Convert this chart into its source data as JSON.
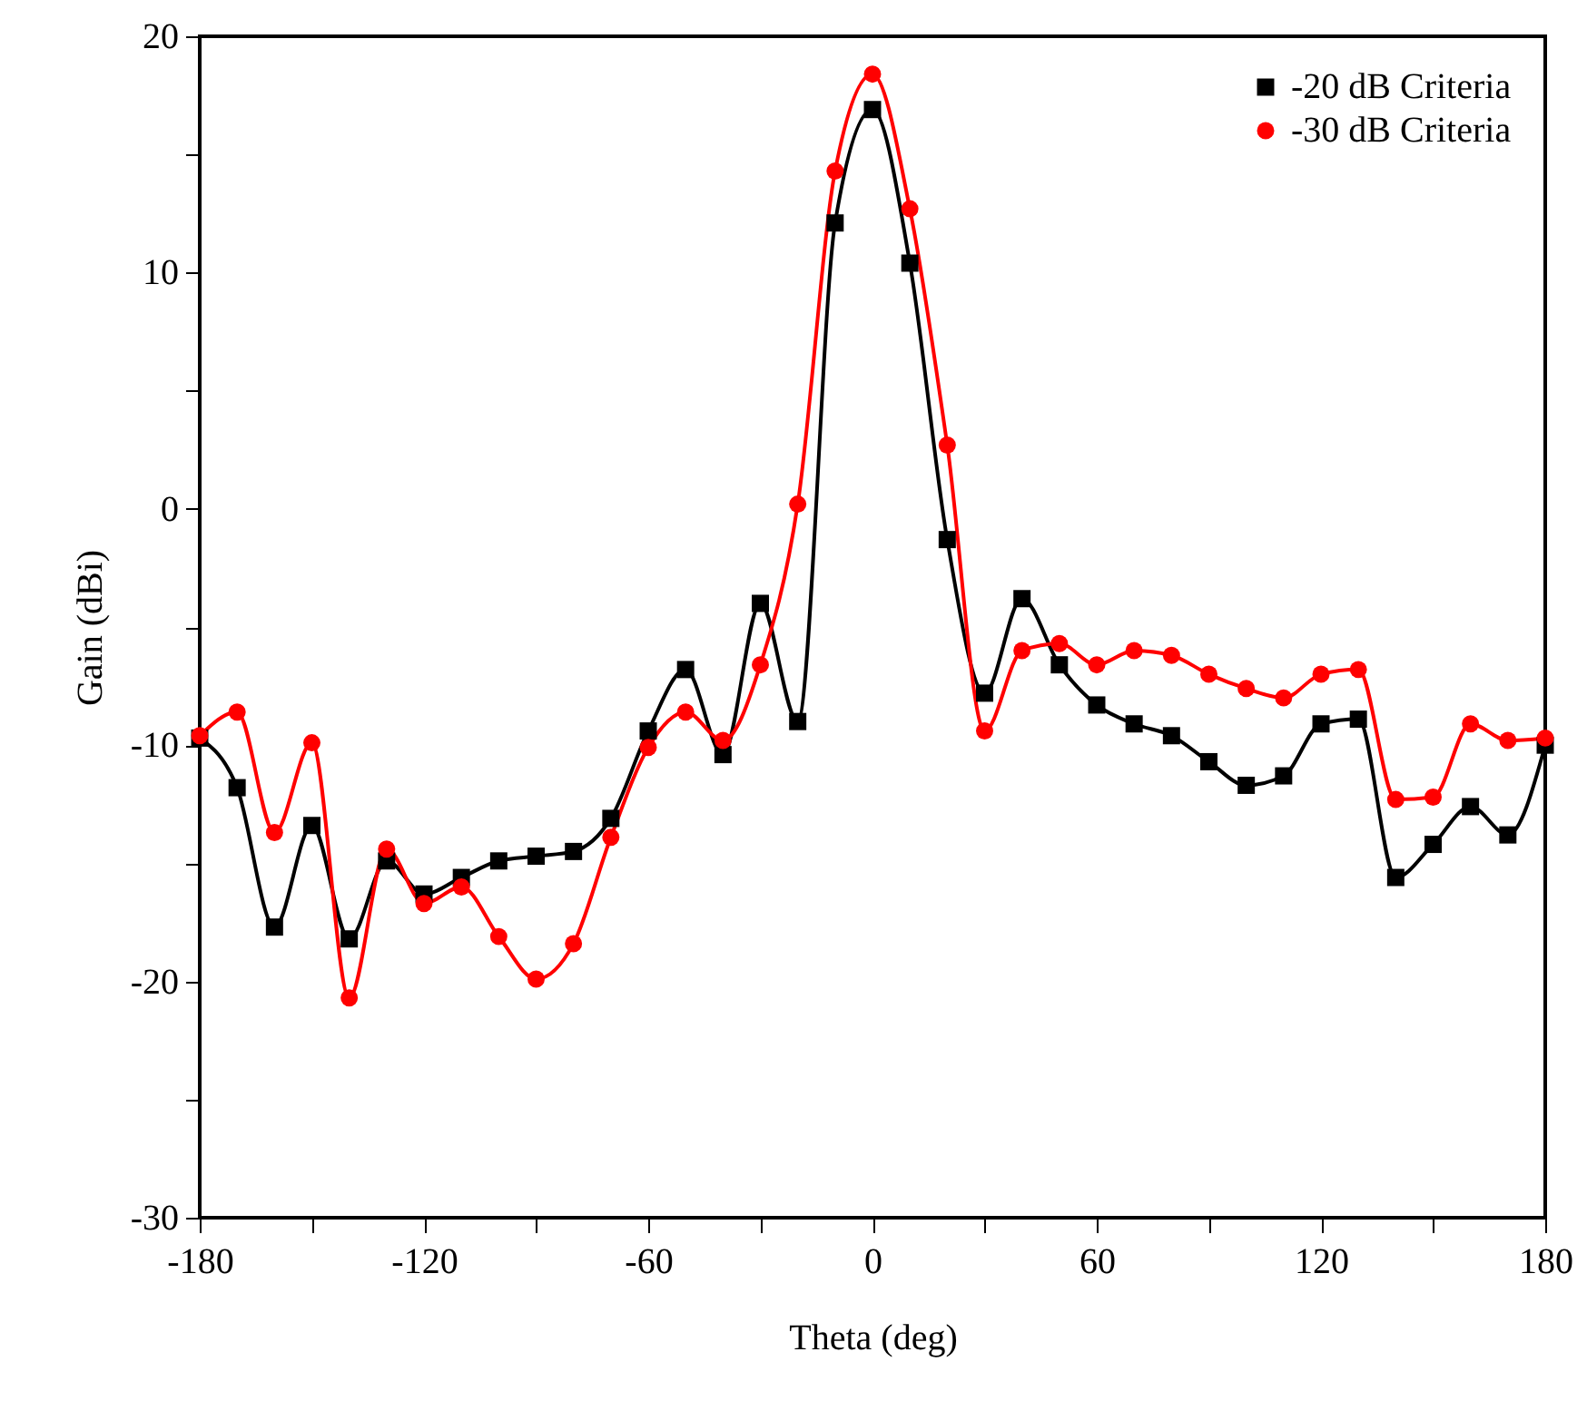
{
  "chart_data": {
    "type": "line",
    "xlabel": "Theta (deg)",
    "ylabel": "Gain (dBi)",
    "x": [
      -180,
      -170,
      -160,
      -150,
      -140,
      -130,
      -120,
      -110,
      -100,
      -90,
      -80,
      -70,
      -60,
      -50,
      -40,
      -30,
      -20,
      -10,
      0,
      10,
      20,
      30,
      40,
      50,
      60,
      70,
      80,
      90,
      100,
      110,
      120,
      130,
      140,
      150,
      160,
      170,
      180
    ],
    "series": [
      {
        "name": "-20 dB Criteria",
        "color": "#000000",
        "marker": "square",
        "values": [
          -9.7,
          -11.8,
          -17.7,
          -13.4,
          -18.2,
          -14.9,
          -16.3,
          -15.6,
          -14.9,
          -14.7,
          -14.5,
          -13.1,
          -9.4,
          -6.8,
          -10.4,
          -4.0,
          -9.0,
          12.1,
          16.9,
          10.4,
          -1.3,
          -7.8,
          -3.8,
          -6.6,
          -8.3,
          -9.1,
          -9.6,
          -10.7,
          -11.7,
          -11.3,
          -9.1,
          -8.9,
          -15.6,
          -14.2,
          -12.6,
          -13.8,
          -10.0
        ]
      },
      {
        "name": "-30 dB Criteria",
        "color": "#ff0000",
        "marker": "circle",
        "values": [
          -9.6,
          -8.6,
          -13.7,
          -9.9,
          -20.7,
          -14.4,
          -16.7,
          -16.0,
          -18.1,
          -19.9,
          -18.4,
          -13.9,
          -10.1,
          -8.6,
          -9.8,
          -6.6,
          0.2,
          14.3,
          18.4,
          12.7,
          2.7,
          -9.4,
          -6.0,
          -5.7,
          -6.6,
          -6.0,
          -6.2,
          -7.0,
          -7.6,
          -8.0,
          -7.0,
          -6.8,
          -12.3,
          -12.2,
          -9.1,
          -9.8,
          -9.7
        ]
      }
    ],
    "xlim": [
      -180,
      180
    ],
    "xticks": [
      -180,
      {
        "value": -150,
        "label": null
      },
      -120,
      {
        "value": -90,
        "label": null
      },
      -60,
      {
        "value": -30,
        "label": null
      },
      0,
      {
        "value": 30,
        "label": null
      },
      60,
      {
        "value": 90,
        "label": null
      },
      120,
      {
        "value": 150,
        "label": null
      },
      180
    ],
    "ylim": [
      -30,
      20
    ],
    "yticks": [
      -30,
      {
        "value": -25,
        "label": null
      },
      -20,
      {
        "value": -15,
        "label": null
      },
      -10,
      {
        "value": -5,
        "label": null
      },
      0,
      {
        "value": 5,
        "label": null
      },
      10,
      {
        "value": 15,
        "label": null
      },
      20
    ],
    "legend": "top right",
    "grid": false,
    "line_style": "solid"
  }
}
